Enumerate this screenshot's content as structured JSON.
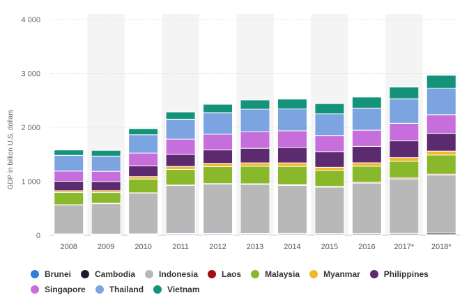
{
  "chart_data": {
    "type": "bar",
    "stacked": true,
    "ylabel": "GDP in billion U.S. dollars",
    "xlabel": "",
    "ylim": [
      0,
      4000
    ],
    "yticks": [
      0,
      1000,
      2000,
      3000,
      4000
    ],
    "ytick_labels": [
      "0",
      "1 000",
      "2 000",
      "3 000",
      "4 000"
    ],
    "grid": true,
    "legend_position": "bottom",
    "categories": [
      "2008",
      "2009",
      "2010",
      "2011",
      "2012",
      "2013",
      "2014",
      "2015",
      "2016",
      "2017*",
      "2018*"
    ],
    "series": [
      {
        "name": "Brunei",
        "color": "#2f7ed8",
        "values": [
          15,
          11,
          14,
          19,
          19,
          18,
          17,
          13,
          11,
          12,
          14
        ]
      },
      {
        "name": "Cambodia",
        "color": "#1a1a2e",
        "values": [
          10,
          10,
          11,
          13,
          14,
          15,
          17,
          18,
          20,
          22,
          25
        ]
      },
      {
        "name": "Indonesia",
        "color": "#b8b8b8",
        "values": [
          535,
          565,
          755,
          890,
          915,
          910,
          890,
          860,
          935,
          1010,
          1075
        ]
      },
      {
        "name": "Laos",
        "color": "#a30d12",
        "values": [
          5,
          6,
          7,
          8,
          9,
          11,
          12,
          14,
          16,
          17,
          18
        ]
      },
      {
        "name": "Malaysia",
        "color": "#89b82a",
        "values": [
          230,
          200,
          255,
          290,
          315,
          325,
          340,
          295,
          297,
          310,
          355
        ]
      },
      {
        "name": "Myanmar",
        "color": "#f2b72a",
        "values": [
          30,
          35,
          45,
          55,
          60,
          62,
          65,
          60,
          63,
          67,
          72
        ]
      },
      {
        "name": "Philippines",
        "color": "#5c2a6e",
        "values": [
          175,
          168,
          200,
          225,
          250,
          270,
          285,
          290,
          305,
          313,
          330
        ]
      },
      {
        "name": "Singapore",
        "color": "#c66fdc",
        "values": [
          190,
          190,
          235,
          280,
          290,
          305,
          310,
          300,
          300,
          323,
          345
        ]
      },
      {
        "name": "Thailand",
        "color": "#7ba4e0",
        "values": [
          290,
          282,
          340,
          370,
          400,
          420,
          405,
          400,
          410,
          455,
          488
        ]
      },
      {
        "name": "Vietnam",
        "color": "#15937a",
        "values": [
          100,
          105,
          115,
          135,
          155,
          170,
          185,
          193,
          205,
          220,
          245
        ]
      }
    ],
    "highlighted_columns": [
      "2009",
      "2011",
      "2013",
      "2015",
      "2017*"
    ]
  },
  "legend_rows": [
    [
      "Brunei",
      "Cambodia",
      "Indonesia",
      "Laos",
      "Malaysia",
      "Myanmar",
      "Philippines"
    ],
    [
      "Singapore",
      "Thailand",
      "Vietnam"
    ]
  ]
}
